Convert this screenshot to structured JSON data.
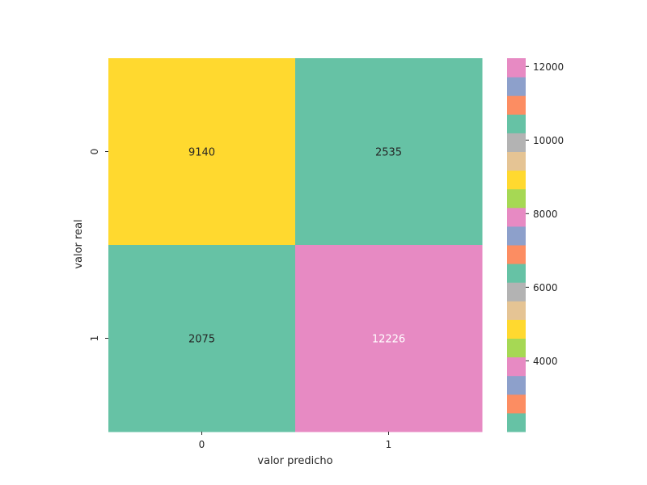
{
  "chart_data": {
    "type": "heatmap",
    "title": "",
    "xlabel": "valor predicho",
    "ylabel": "valor real",
    "x_categories": [
      "0",
      "1"
    ],
    "y_categories": [
      "0",
      "1"
    ],
    "values": [
      [
        9140,
        2535
      ],
      [
        2075,
        12226
      ]
    ],
    "cell_colors": [
      [
        "#ffd92f",
        "#66c2a5"
      ],
      [
        "#66c2a5",
        "#e78ac3"
      ]
    ],
    "cell_text_colors": [
      [
        "#262626",
        "#262626"
      ],
      [
        "#262626",
        "#ffffff"
      ]
    ],
    "colorbar": {
      "min": 2075,
      "max": 12226,
      "ticks": [
        4000,
        6000,
        8000,
        10000,
        12000
      ],
      "palette": [
        "#66c2a5",
        "#fc8d62",
        "#8da0cb",
        "#e78ac3",
        "#a6d854",
        "#ffd92f",
        "#e5c494",
        "#b3b3b3"
      ],
      "bands": 20
    }
  }
}
